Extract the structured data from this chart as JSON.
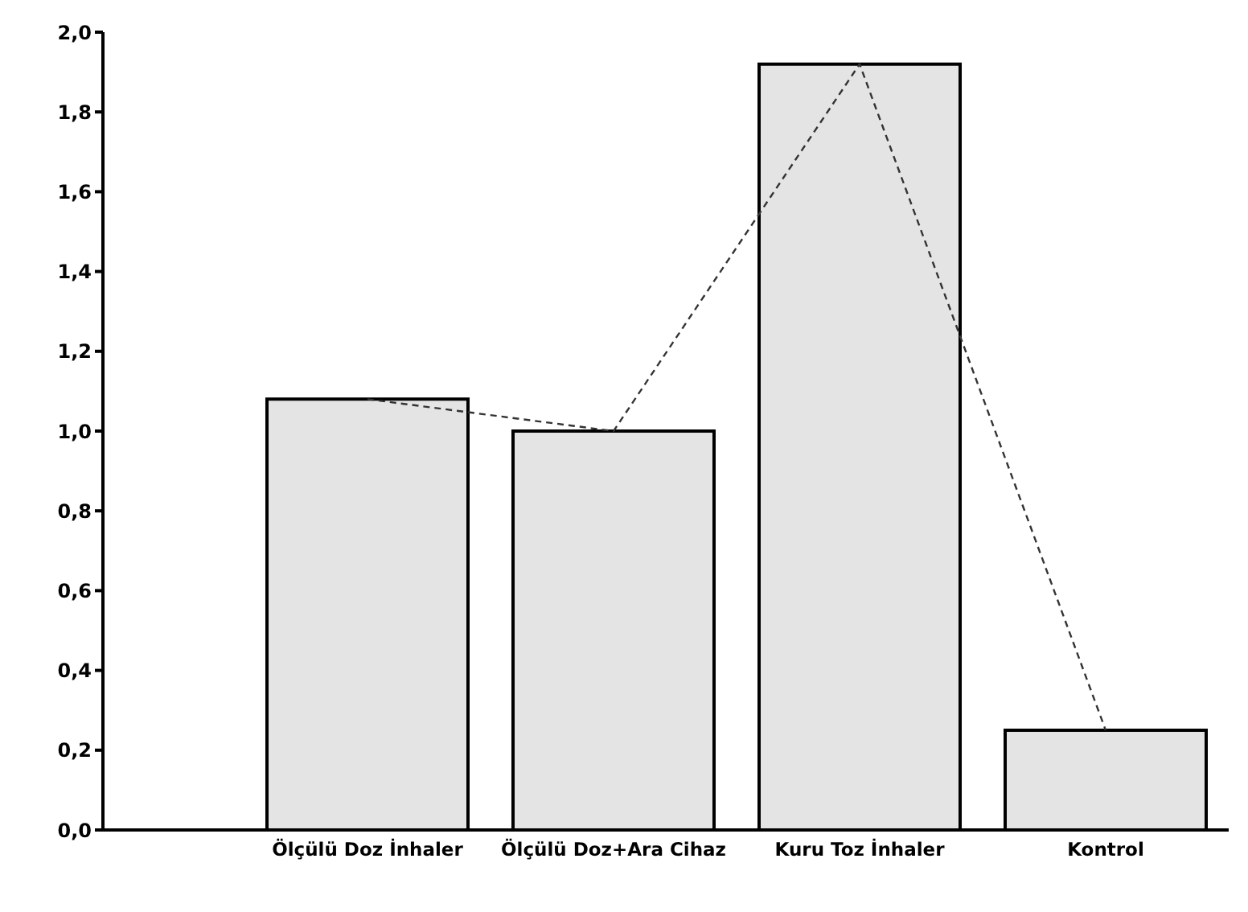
{
  "chart_data": {
    "type": "bar",
    "categories": [
      "Ölçülü Doz İnhaler",
      "Ölçülü Doz+Ara Cihaz",
      "Kuru Toz İnhaler",
      "Kontrol"
    ],
    "series": [
      {
        "color": "#e4e4e4",
        "values": [
          1.08,
          1.0,
          1.92,
          0.25
        ]
      },
      {
        "type": "line",
        "color": "#333333",
        "values": [
          1.08,
          1.0,
          1.92,
          0.25
        ],
        "line_style": "dashed",
        "marker": "none"
      }
    ],
    "ylim": [
      0,
      2.0
    ],
    "yticks": [
      {
        "value": 0,
        "label": "0,0"
      },
      {
        "value": 0.2,
        "label": "0,2"
      },
      {
        "value": 0.4,
        "label": "0,4"
      },
      {
        "value": 0.6,
        "label": "0,6"
      },
      {
        "value": 0.8,
        "label": "0,8"
      },
      {
        "value": 1.0,
        "label": "1,0"
      },
      {
        "value": 1.2,
        "label": "1,2"
      },
      {
        "value": 1.4,
        "label": "1,4"
      },
      {
        "value": 1.6,
        "label": "1,6"
      },
      {
        "value": 1.8,
        "label": "1,8"
      },
      {
        "value": 2.0,
        "label": "2,0"
      }
    ],
    "grid": false,
    "legend": false
  }
}
